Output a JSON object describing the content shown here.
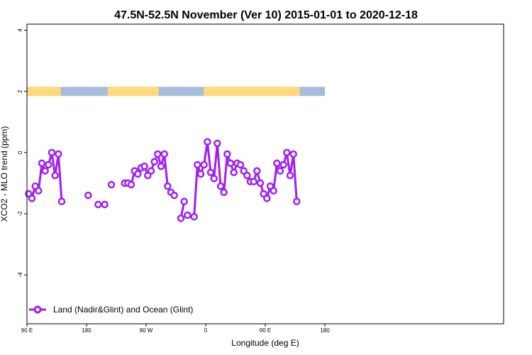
{
  "chart_data": {
    "type": "line",
    "title": "47.5N-52.5N November (Ver 10)   2015-01-01 to 2020-12-18",
    "xlabel": "Longitude (deg E)",
    "ylabel": "XCO2 - MLO trend (ppm)",
    "xlim": [
      90,
      450
    ],
    "ylim": [
      -5.6,
      4.2
    ],
    "xticks": [
      {
        "value": 90,
        "label": "90 E"
      },
      {
        "value": 180,
        "label": "180"
      },
      {
        "value": 270,
        "label": "90 W"
      },
      {
        "value": 360,
        "label": "0"
      },
      {
        "value": 450,
        "label": "90 E"
      },
      {
        "value": 540,
        "label": "180"
      }
    ],
    "yticks": [
      {
        "value": 4,
        "label": "4"
      },
      {
        "value": 2,
        "label": "2"
      },
      {
        "value": 0,
        "label": "0"
      },
      {
        "value": -2,
        "label": "-2"
      },
      {
        "value": -4,
        "label": "-4"
      }
    ],
    "grid": false,
    "legend_position": "bottom-left",
    "series": [
      {
        "name": "Land (Nadir&Glint) and Ocean (Glint)",
        "color": "#a020f0",
        "points": [
          [
            92.5,
            -1.35
          ],
          [
            97.5,
            -1.5
          ],
          [
            102.5,
            -1.1
          ],
          [
            107.5,
            -1.25
          ],
          [
            112.5,
            -0.35
          ],
          [
            117.5,
            -0.6
          ],
          [
            122.5,
            -0.4
          ],
          [
            127.5,
            0.0
          ],
          [
            132.5,
            -0.75
          ],
          [
            137.5,
            -0.05
          ],
          [
            142.5,
            -1.6
          ],
          null,
          [
            182.5,
            -1.4
          ],
          null,
          [
            197.5,
            -1.7
          ],
          null,
          [
            207.5,
            -1.7
          ],
          null,
          [
            217.5,
            -1.05
          ],
          null,
          [
            237.5,
            -1.0
          ],
          [
            242.5,
            -1.0
          ],
          [
            247.5,
            -1.05
          ],
          [
            252.5,
            -0.6
          ],
          [
            257.5,
            -0.7
          ],
          [
            262.5,
            -0.5
          ],
          [
            267.5,
            -0.45
          ],
          [
            272.5,
            -0.75
          ],
          [
            277.5,
            -0.6
          ],
          [
            282.5,
            -0.3
          ],
          [
            287.5,
            -0.05
          ],
          [
            292.5,
            -0.45
          ],
          [
            297.5,
            -0.05
          ],
          [
            302.5,
            -1.1
          ],
          [
            307.5,
            -1.3
          ],
          [
            312.5,
            -1.4
          ],
          null,
          [
            322.5,
            -2.15
          ],
          [
            327.5,
            -1.6
          ],
          null,
          [
            332.5,
            -2.05
          ],
          null,
          [
            342.5,
            -2.1
          ],
          [
            347.5,
            -0.4
          ],
          [
            352.5,
            -0.7
          ],
          [
            357.5,
            -0.4
          ],
          [
            362.5,
            0.35
          ],
          [
            367.5,
            -0.65
          ],
          [
            372.5,
            -0.85
          ],
          [
            377.5,
            0.3
          ],
          [
            382.5,
            -1.1
          ],
          [
            387.5,
            -1.3
          ],
          [
            392.5,
            -0.05
          ],
          [
            397.5,
            -0.35
          ],
          [
            402.5,
            -0.65
          ],
          [
            407.5,
            -0.35
          ],
          [
            412.5,
            -0.4
          ],
          [
            417.5,
            -0.6
          ],
          [
            422.5,
            -0.75
          ],
          [
            427.5,
            -0.95
          ],
          [
            432.5,
            -0.95
          ],
          [
            437.5,
            -0.6
          ],
          [
            442.5,
            -1.0
          ],
          [
            447.5,
            -1.35
          ],
          [
            452.5,
            -1.5
          ],
          [
            457.5,
            -1.1
          ],
          [
            462.5,
            -1.25
          ],
          [
            467.5,
            -0.35
          ],
          [
            472.5,
            -0.6
          ],
          [
            477.5,
            -0.4
          ],
          [
            482.5,
            0.0
          ],
          [
            487.5,
            -0.75
          ],
          [
            492.5,
            -0.05
          ],
          [
            497.5,
            -1.6
          ]
        ]
      }
    ],
    "surface_band": {
      "y_range": [
        1.85,
        2.15
      ],
      "land_color": "#ffd97a",
      "ocean_color": "#a5bcdd",
      "land_spans": [
        [
          90,
          141
        ],
        [
          212,
          289
        ],
        [
          357,
          502
        ]
      ]
    }
  }
}
